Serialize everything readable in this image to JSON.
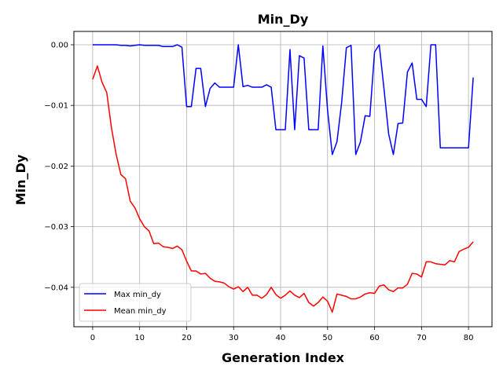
{
  "chart_data": {
    "type": "line",
    "title": "Min_Dy",
    "xlabel": "Generation Index",
    "ylabel": "Min_Dy",
    "xlim": [
      -4,
      85
    ],
    "ylim": [
      -0.0465,
      0.0022
    ],
    "xticks": [
      0,
      10,
      20,
      30,
      40,
      50,
      60,
      70,
      80
    ],
    "xtick_labels": [
      "0",
      "10",
      "20",
      "30",
      "40",
      "50",
      "60",
      "70",
      "80"
    ],
    "yticks": [
      0.0,
      -0.01,
      -0.02,
      -0.03,
      -0.04
    ],
    "ytick_labels": [
      "0.00",
      "−0.01",
      "−0.02",
      "−0.03",
      "−0.04"
    ],
    "grid": true,
    "legend_position": "lower-left",
    "series": [
      {
        "name": "Max min_dy",
        "color": "#0000ff",
        "x": [
          0,
          1,
          2,
          3,
          4,
          5,
          6,
          7,
          8,
          9,
          10,
          11,
          12,
          13,
          14,
          15,
          16,
          17,
          18,
          19,
          20,
          21,
          22,
          23,
          24,
          25,
          26,
          27,
          28,
          29,
          30,
          31,
          32,
          33,
          34,
          35,
          36,
          37,
          38,
          39,
          40,
          41,
          42,
          43,
          44,
          45,
          46,
          47,
          48,
          49,
          50,
          51,
          52,
          53,
          54,
          55,
          56,
          57,
          58,
          59,
          60,
          61,
          62,
          63,
          64,
          65,
          66,
          67,
          68,
          69,
          70,
          71,
          72,
          73,
          74,
          75,
          76,
          77,
          78,
          79,
          80,
          81
        ],
        "values": [
          0.0,
          0.0,
          0.0,
          0.0,
          0.0,
          0.0,
          -0.0001,
          -0.0001,
          -0.0002,
          -0.0001,
          0.0,
          -0.0001,
          -0.0001,
          -0.0001,
          -0.0001,
          -0.0003,
          -0.0003,
          -0.0003,
          0.0,
          -0.0004,
          -0.0102,
          -0.0102,
          -0.0039,
          -0.0039,
          -0.0102,
          -0.0072,
          -0.0063,
          -0.007,
          -0.007,
          -0.007,
          -0.007,
          0.0,
          -0.0069,
          -0.0067,
          -0.007,
          -0.007,
          -0.007,
          -0.0066,
          -0.007,
          -0.014,
          -0.014,
          -0.014,
          -0.0008,
          -0.014,
          -0.0018,
          -0.0022,
          -0.014,
          -0.014,
          -0.014,
          -0.0002,
          -0.0108,
          -0.0181,
          -0.016,
          -0.0095,
          -0.0005,
          -0.0001,
          -0.0181,
          -0.016,
          -0.0117,
          -0.0118,
          -0.0012,
          0.0,
          -0.0072,
          -0.0147,
          -0.0181,
          -0.013,
          -0.0129,
          -0.0045,
          -0.003,
          -0.009,
          -0.009,
          -0.0102,
          0.0,
          0.0,
          -0.017,
          -0.017,
          -0.017,
          -0.017,
          -0.017,
          -0.017,
          -0.017,
          -0.0054
        ]
      },
      {
        "name": "Mean min_dy",
        "color": "#ff0000",
        "x": [
          0,
          1,
          2,
          3,
          4,
          5,
          6,
          7,
          8,
          9,
          10,
          11,
          12,
          13,
          14,
          15,
          16,
          17,
          18,
          19,
          20,
          21,
          22,
          23,
          24,
          25,
          26,
          27,
          28,
          29,
          30,
          31,
          32,
          33,
          34,
          35,
          36,
          37,
          38,
          39,
          40,
          41,
          42,
          43,
          44,
          45,
          46,
          47,
          48,
          49,
          50,
          51,
          52,
          53,
          54,
          55,
          56,
          57,
          58,
          59,
          60,
          61,
          62,
          63,
          64,
          65,
          66,
          67,
          68,
          69,
          70,
          71,
          72,
          73,
          74,
          75,
          76,
          77,
          78,
          79,
          80,
          81
        ],
        "values": [
          -0.0057,
          -0.0035,
          -0.0062,
          -0.0079,
          -0.0137,
          -0.0181,
          -0.0214,
          -0.0221,
          -0.0258,
          -0.0269,
          -0.0287,
          -0.03,
          -0.0307,
          -0.0328,
          -0.0327,
          -0.0333,
          -0.0334,
          -0.0336,
          -0.0332,
          -0.0338,
          -0.0357,
          -0.0373,
          -0.0373,
          -0.0378,
          -0.0377,
          -0.0385,
          -0.039,
          -0.0391,
          -0.0393,
          -0.0399,
          -0.0403,
          -0.0399,
          -0.0407,
          -0.04,
          -0.0413,
          -0.0413,
          -0.0418,
          -0.0412,
          -0.04,
          -0.0412,
          -0.0418,
          -0.0413,
          -0.0406,
          -0.0413,
          -0.0417,
          -0.041,
          -0.0425,
          -0.0431,
          -0.0425,
          -0.0416,
          -0.0423,
          -0.0441,
          -0.0411,
          -0.0413,
          -0.0415,
          -0.0419,
          -0.0419,
          -0.0416,
          -0.0411,
          -0.0409,
          -0.041,
          -0.0398,
          -0.0396,
          -0.0404,
          -0.0407,
          -0.0401,
          -0.0401,
          -0.0395,
          -0.0377,
          -0.0378,
          -0.0383,
          -0.0358,
          -0.0358,
          -0.0361,
          -0.0362,
          -0.0363,
          -0.0356,
          -0.0358,
          -0.0341,
          -0.0337,
          -0.0334,
          -0.0325
        ]
      }
    ]
  }
}
